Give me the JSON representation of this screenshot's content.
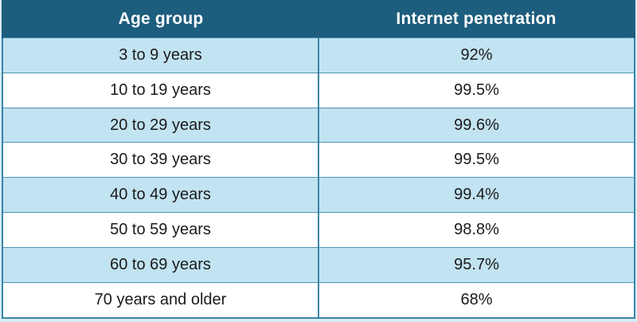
{
  "chart_data": {
    "type": "table",
    "columns": [
      "Age group",
      "Internet penetration"
    ],
    "rows": [
      [
        "3 to 9 years",
        "92%"
      ],
      [
        "10 to 19 years",
        "99.5%"
      ],
      [
        "20 to 29 years",
        "99.6%"
      ],
      [
        "30 to 39 years",
        "99.5%"
      ],
      [
        "40 to 49 years",
        "99.4%"
      ],
      [
        "50 to 59 years",
        "98.8%"
      ],
      [
        "60 to 69 years",
        "95.7%"
      ],
      [
        "70 years and older",
        "68%"
      ]
    ],
    "values_numeric": [
      92,
      99.5,
      99.6,
      99.5,
      99.4,
      98.8,
      95.7,
      68
    ],
    "layout": {
      "header_position": "top",
      "column_alignment": [
        "center",
        "center"
      ],
      "striped": true
    }
  },
  "colors": {
    "header_bg": "#1d5d7e",
    "header_text": "#ffffff",
    "row_alt_bg": "#c2e3f1",
    "row_bg": "#ffffff",
    "border": "#3c85a6",
    "outer_margin": "#d5ecf6",
    "cell_text": "#1b1b1b"
  }
}
